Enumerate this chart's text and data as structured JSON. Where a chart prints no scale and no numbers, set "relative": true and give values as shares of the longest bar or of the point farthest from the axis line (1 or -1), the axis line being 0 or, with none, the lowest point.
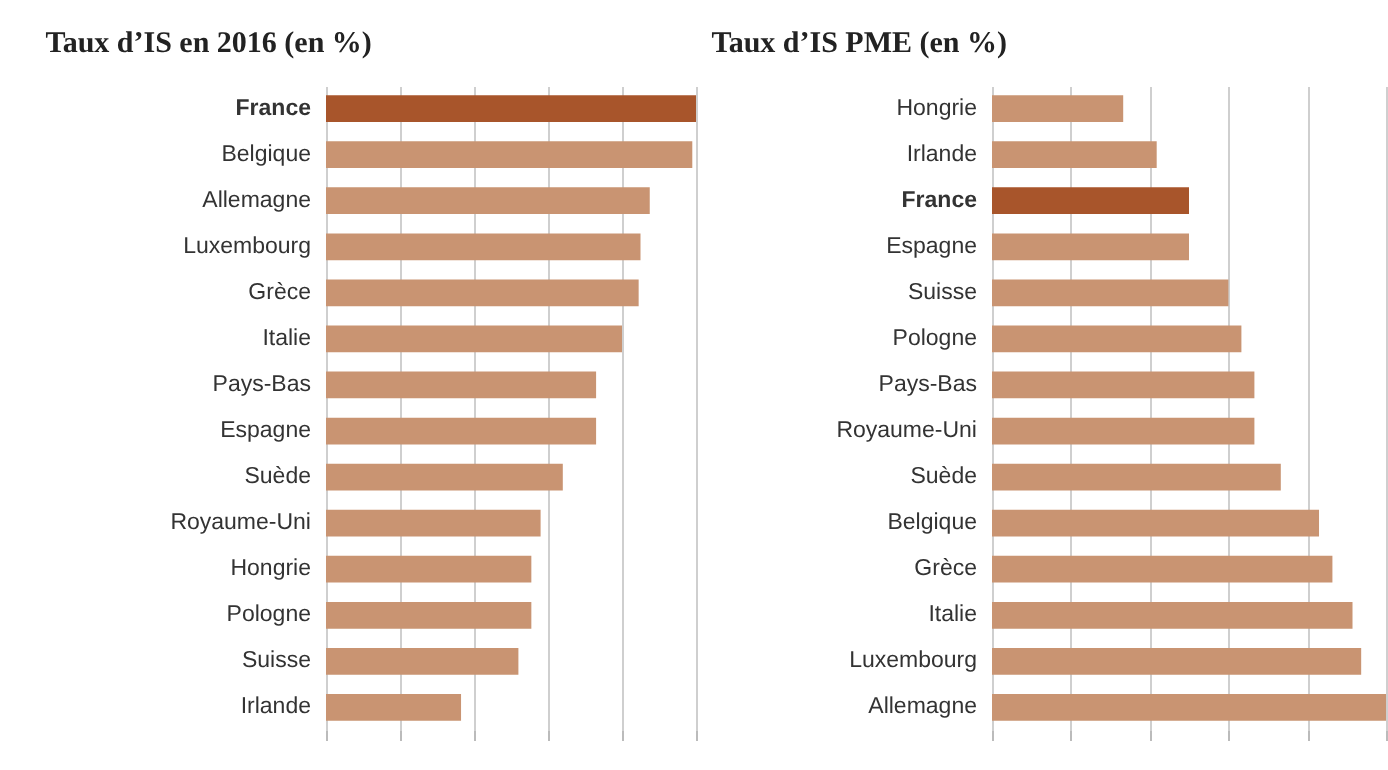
{
  "chart_data": [
    {
      "type": "bar",
      "orientation": "horizontal",
      "relative": true,
      "title": "Taux d’IS en 2016 (en %)",
      "categories": [
        "France",
        "Belgique",
        "Allemagne",
        "Luxembourg",
        "Grèce",
        "Italie",
        "Pays-Bas",
        "Espagne",
        "Suède",
        "Royaume-Uni",
        "Hongrie",
        "Pologne",
        "Suisse",
        "Irlande"
      ],
      "values": [
        1,
        0.99,
        0.875,
        0.85,
        0.845,
        0.8,
        0.73,
        0.73,
        0.64,
        0.58,
        0.555,
        0.555,
        0.52,
        0.365
      ],
      "colors": [
        "#a8552b",
        "#c99472",
        "#c99472",
        "#c99472",
        "#c99472",
        "#c99472",
        "#c99472",
        "#c99472",
        "#c99472",
        "#c99472",
        "#c99472",
        "#c99472",
        "#c99472",
        "#c99472"
      ]
    },
    {
      "type": "bar",
      "orientation": "horizontal",
      "relative": true,
      "title": "Taux d’IS PME (en %)",
      "categories": [
        "Hongrie",
        "Irlande",
        "France",
        "Espagne",
        "Suisse",
        "Pologne",
        "Pays-Bas",
        "Royaume-Uni",
        "Suède",
        "Belgique",
        "Grèce",
        "Italie",
        "Luxembourg",
        "Allemagne"
      ],
      "values": [
        0.333,
        0.418,
        0.5,
        0.5,
        0.6,
        0.633,
        0.666,
        0.666,
        0.733,
        0.83,
        0.864,
        0.915,
        0.937,
        1
      ],
      "colors": [
        "#c99472",
        "#c99472",
        "#a8552b",
        "#c99472",
        "#c99472",
        "#c99472",
        "#c99472",
        "#c99472",
        "#c99472",
        "#c99472",
        "#c99472",
        "#c99472",
        "#c99472",
        "#c99472"
      ]
    }
  ]
}
